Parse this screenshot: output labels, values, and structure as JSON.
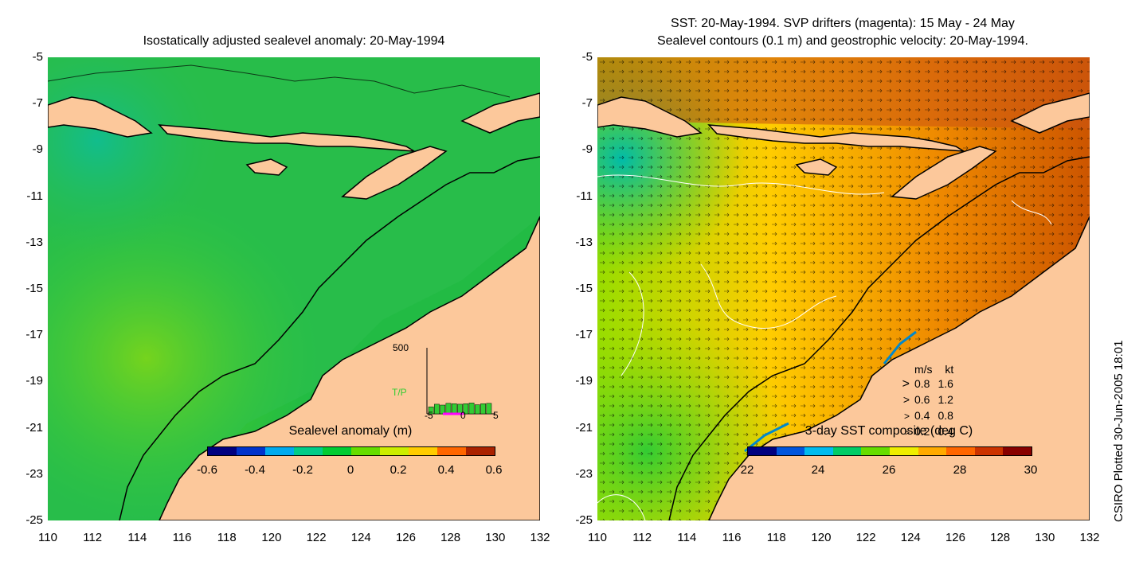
{
  "left_panel": {
    "title": "Isostatically adjusted sealevel anomaly: 20-May-1994",
    "colorbar": {
      "title": "Sealevel anomaly (m)",
      "ticks": [
        "-0.6",
        "-0.4",
        "-0.2",
        "0",
        "0.2",
        "0.4",
        "0.6"
      ],
      "colors": [
        "#000080",
        "#0033cc",
        "#00aaee",
        "#00cc88",
        "#00cc33",
        "#66dd00",
        "#ccee00",
        "#ffcc00",
        "#ff6600",
        "#aa2200"
      ]
    },
    "inset": {
      "y_max_label": "500",
      "series_label": "T/P",
      "x_ticks": [
        "-5",
        "0",
        "5"
      ],
      "bar_values": [
        40,
        55,
        50,
        60,
        58,
        55,
        58,
        62,
        52,
        58,
        60
      ],
      "bar_color": "#33cc33",
      "highlight_color": "#ff00ff",
      "series_label_color": "#33cc33"
    }
  },
  "right_panel": {
    "title_line1": "SST: 20-May-1994. SVP drifters (magenta): 15 May - 24 May",
    "title_line2": "Sealevel contours (0.1 m) and geostrophic velocity: 20-May-1994.",
    "colorbar": {
      "title": "3-day SST composite (deg C)",
      "ticks": [
        "22",
        "24",
        "26",
        "28",
        "30"
      ],
      "colors": [
        "#000080",
        "#0055dd",
        "#00bbee",
        "#00cc66",
        "#66dd00",
        "#eeee00",
        "#ffaa00",
        "#ff6600",
        "#cc3300",
        "#880000"
      ]
    },
    "velocity_legend": {
      "header_ms": "m/s",
      "header_kt": "kt",
      "rows": [
        {
          "ms": "0.8",
          "kt": "1.6"
        },
        {
          "ms": "0.6",
          "kt": "1.2"
        },
        {
          "ms": "0.4",
          "kt": "0.8"
        },
        {
          "ms": "0.2",
          "kt": "0.4"
        }
      ]
    }
  },
  "axes": {
    "y_ticks": [
      "-5",
      "-7",
      "-9",
      "-11",
      "-13",
      "-15",
      "-17",
      "-19",
      "-21",
      "-23",
      "-25"
    ],
    "x_ticks": [
      "110",
      "112",
      "114",
      "116",
      "118",
      "120",
      "122",
      "124",
      "126",
      "128",
      "130",
      "132"
    ]
  },
  "credit": "CSIRO Plotted 30-Jun-2005 18:01",
  "colors": {
    "land": "#fcc89b",
    "ocean_sla": "#22bb44",
    "ocean_sst": "#ee9922",
    "coastline": "#000000"
  }
}
